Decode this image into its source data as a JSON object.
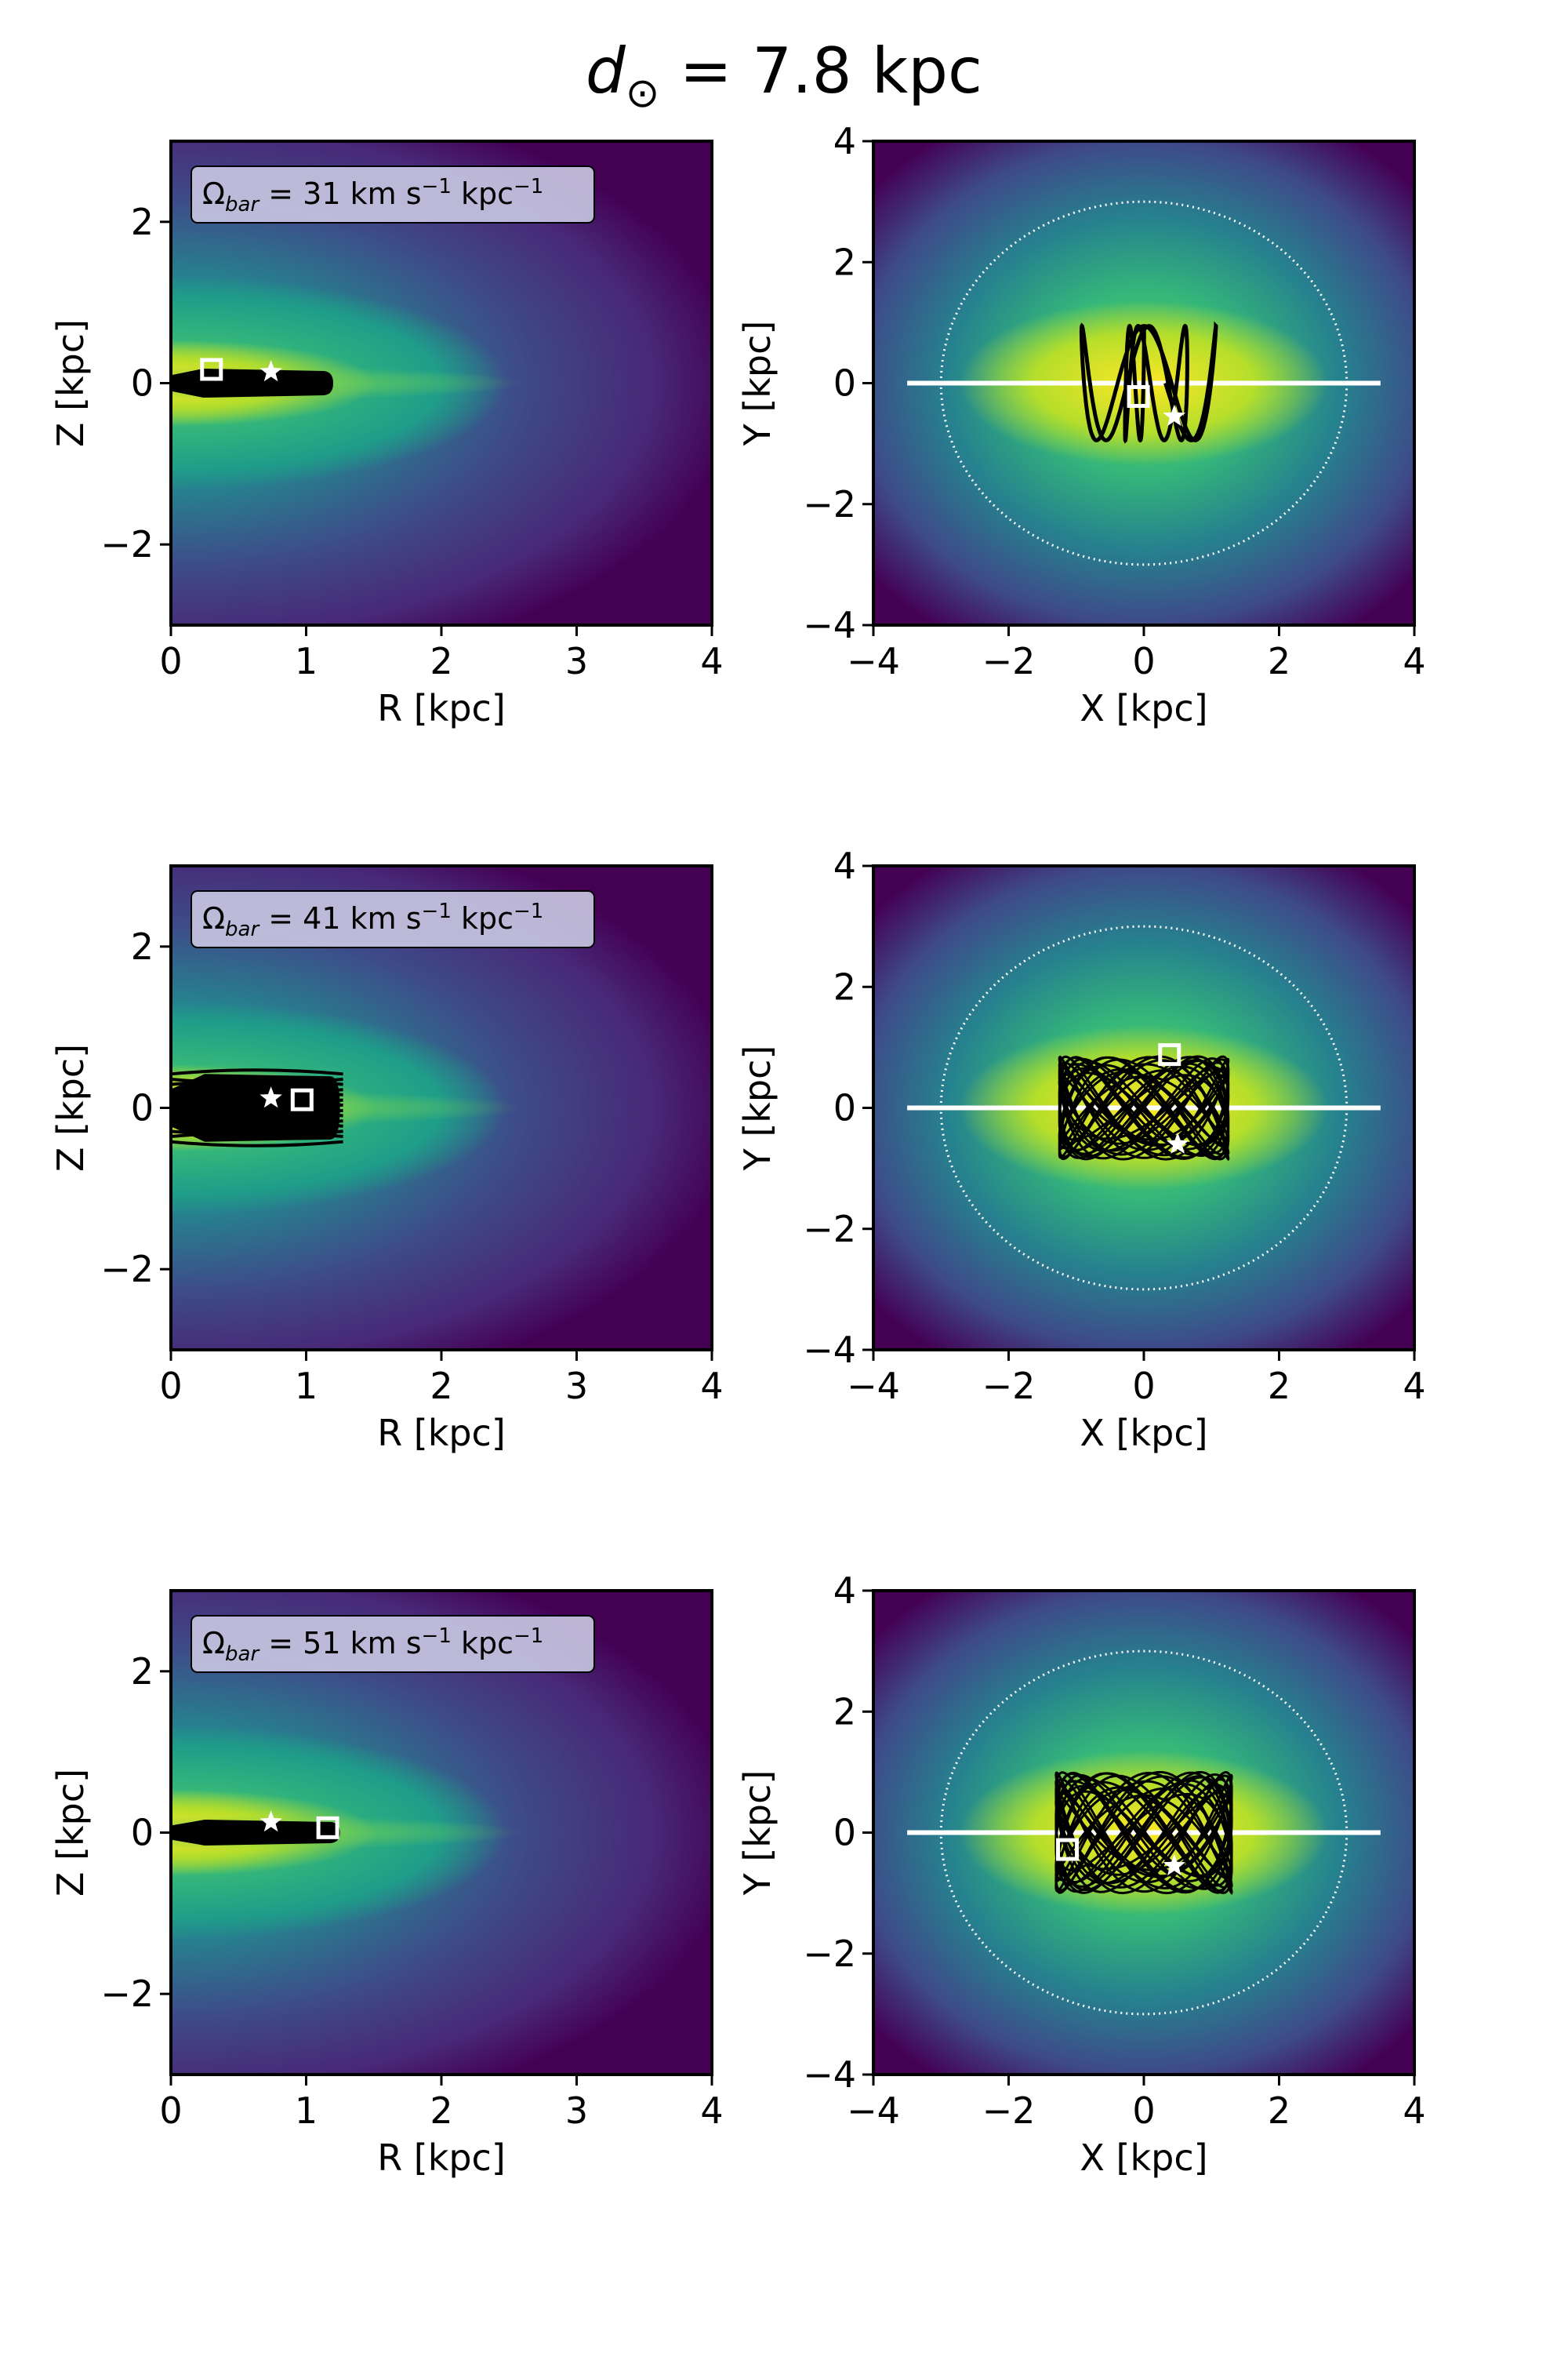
{
  "figure": {
    "title_main": "d",
    "title_sub": "⊙",
    "title_rest": " =  7.8 kpc"
  },
  "colors": {
    "viridis": [
      "#440154",
      "#482878",
      "#3e4a89",
      "#31688e",
      "#26828e",
      "#1f9e89",
      "#35b779",
      "#6ece58",
      "#b5de2b",
      "#fde725"
    ],
    "orbit": "#000000",
    "markers": "#ffffff",
    "bar_line": "#ffffff"
  },
  "chart_data": [
    {
      "type": "heatmap",
      "panel": "rz",
      "row": 0,
      "xlabel": "R [kpc]",
      "ylabel": "Z [kpc]",
      "xlim": [
        0,
        4
      ],
      "ylim": [
        -3,
        3
      ],
      "xticks": [
        "0",
        "1",
        "2",
        "3",
        "4"
      ],
      "yticks": [
        "2",
        "0",
        "−2"
      ],
      "legend_label": "Ω",
      "legend_sub": "bar",
      "legend_value": " =  31 km s",
      "legend_exp1": "−1",
      "legend_unit": " kpc",
      "legend_exp2": "−1",
      "orbit_extent": {
        "r_max": 1.2,
        "z_half": 0.18
      },
      "star": {
        "x": 0.74,
        "y": 0.14
      },
      "square": {
        "x": 0.3,
        "y": 0.17
      }
    },
    {
      "type": "heatmap",
      "panel": "xy",
      "row": 0,
      "xlabel": "X [kpc]",
      "ylabel": "Y [kpc]",
      "xlim": [
        -4,
        4
      ],
      "ylim": [
        -4,
        4
      ],
      "xticks": [
        "−4",
        "−2",
        "0",
        "2",
        "4"
      ],
      "yticks": [
        "4",
        "2",
        "0",
        "−2",
        "−4"
      ],
      "circle_radius": 3.0,
      "bar_line": {
        "x0": -3.5,
        "x1": 3.5,
        "y": 0
      },
      "orbit_shape": "loops",
      "orbit_extent": {
        "x_half": 1.2,
        "y_half": 1.05
      },
      "star": {
        "x": 0.45,
        "y": -0.55
      },
      "square": {
        "x": -0.08,
        "y": -0.22
      }
    },
    {
      "type": "heatmap",
      "panel": "rz",
      "row": 1,
      "xlabel": "R [kpc]",
      "ylabel": "Z [kpc]",
      "xlim": [
        0,
        4
      ],
      "ylim": [
        -3,
        3
      ],
      "xticks": [
        "0",
        "1",
        "2",
        "3",
        "4"
      ],
      "yticks": [
        "2",
        "0",
        "−2"
      ],
      "legend_label": "Ω",
      "legend_sub": "bar",
      "legend_value": " =  41 km s",
      "legend_exp1": "−1",
      "legend_unit": " kpc",
      "legend_exp2": "−1",
      "orbit_extent": {
        "r_max": 1.25,
        "z_half": 0.42
      },
      "star": {
        "x": 0.74,
        "y": 0.12
      },
      "square": {
        "x": 0.97,
        "y": 0.1
      }
    },
    {
      "type": "heatmap",
      "panel": "xy",
      "row": 1,
      "xlabel": "X [kpc]",
      "ylabel": "Y [kpc]",
      "xlim": [
        -4,
        4
      ],
      "ylim": [
        -4,
        4
      ],
      "xticks": [
        "−4",
        "−2",
        "0",
        "2",
        "4"
      ],
      "yticks": [
        "4",
        "2",
        "0",
        "−2",
        "−4"
      ],
      "circle_radius": 3.0,
      "bar_line": {
        "x0": -3.5,
        "x1": 3.5,
        "y": 0
      },
      "orbit_shape": "dense",
      "orbit_extent": {
        "x_half": 1.25,
        "y_half": 0.85
      },
      "star": {
        "x": 0.5,
        "y": -0.6
      },
      "square": {
        "x": 0.38,
        "y": 0.88
      }
    },
    {
      "type": "heatmap",
      "panel": "rz",
      "row": 2,
      "xlabel": "R [kpc]",
      "ylabel": "Z [kpc]",
      "xlim": [
        0,
        4
      ],
      "ylim": [
        -3,
        3
      ],
      "xticks": [
        "0",
        "1",
        "2",
        "3",
        "4"
      ],
      "yticks": [
        "2",
        "0",
        "−2"
      ],
      "legend_label": "Ω",
      "legend_sub": "bar",
      "legend_value": " =  51 km s",
      "legend_exp1": "−1",
      "legend_unit": " kpc",
      "legend_exp2": "−1",
      "orbit_extent": {
        "r_max": 1.25,
        "z_half": 0.16
      },
      "star": {
        "x": 0.74,
        "y": 0.13
      },
      "square": {
        "x": 1.16,
        "y": 0.06
      }
    },
    {
      "type": "heatmap",
      "panel": "xy",
      "row": 2,
      "xlabel": "X [kpc]",
      "ylabel": "Y [kpc]",
      "xlim": [
        -4,
        4
      ],
      "ylim": [
        -4,
        4
      ],
      "xticks": [
        "−4",
        "−2",
        "0",
        "2",
        "4"
      ],
      "yticks": [
        "4",
        "2",
        "0",
        "−2",
        "−4"
      ],
      "circle_radius": 3.0,
      "bar_line": {
        "x0": -3.5,
        "x1": 3.5,
        "y": 0
      },
      "orbit_shape": "dense",
      "orbit_extent": {
        "x_half": 1.3,
        "y_half": 1.0
      },
      "star": {
        "x": 0.45,
        "y": -0.55
      },
      "square": {
        "x": -1.13,
        "y": -0.28
      }
    }
  ]
}
